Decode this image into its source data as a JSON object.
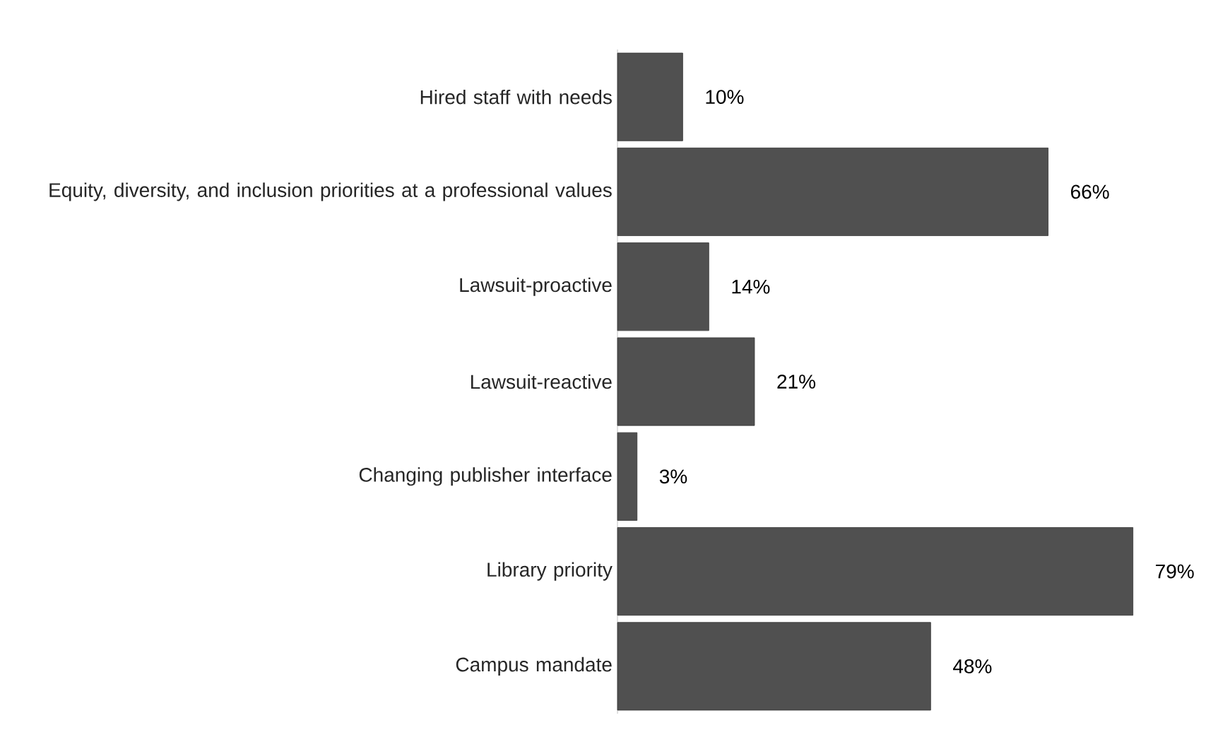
{
  "chart_data": {
    "type": "bar",
    "orientation": "horizontal",
    "categories": [
      "Hired staff with needs",
      "Equity, diversity, and inclusion priorities at a professional values",
      "Lawsuit-proactive",
      "Lawsuit-reactive",
      "Changing publisher interface",
      "Library priority",
      "Campus mandate"
    ],
    "values": [
      10,
      66,
      14,
      21,
      3,
      79,
      48
    ],
    "value_labels": [
      "10%",
      "66%",
      "14%",
      "21%",
      "3%",
      "79%",
      "48%"
    ],
    "color": "#505050"
  }
}
